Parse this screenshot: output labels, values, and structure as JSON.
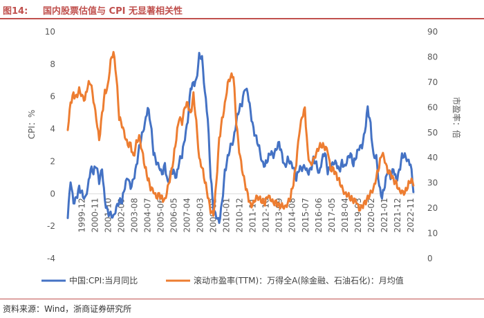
{
  "figure": {
    "number": "图14:",
    "title": "国内股票估值与 CPI 无显著相关性",
    "source": "资料来源：Wind，浙商证券研究所"
  },
  "chart_data": {
    "type": "line",
    "left_axis": {
      "label": "CPI：%",
      "range": [
        -4,
        10
      ],
      "ticks": [
        -4,
        -2,
        0,
        2,
        4,
        6,
        8,
        10
      ]
    },
    "right_axis": {
      "label": "市盈率：倍",
      "range": [
        0,
        90
      ],
      "ticks": [
        0,
        10,
        20,
        30,
        40,
        50,
        60,
        70,
        80,
        90
      ]
    },
    "x_range": [
      1999.0,
      2023.3
    ],
    "x_ticks": [
      "1999-12",
      "2000-11",
      "2001-10",
      "2002-09",
      "2003-08",
      "2004-07",
      "2005-06",
      "2006-05",
      "2007-04",
      "2008-03",
      "2009-02",
      "2010-01",
      "2010-12",
      "2011-11",
      "2012-10",
      "2013-09",
      "2014-08",
      "2015-07",
      "2016-06",
      "2017-05",
      "2018-04",
      "2019-03",
      "2020-02",
      "2021-01",
      "2021-12",
      "2022-11"
    ],
    "series": [
      {
        "name": "中国:CPI:当月同比",
        "axis": "left",
        "color": "#4472c4",
        "x": [
          1999.0,
          1999.2,
          1999.4,
          1999.6,
          1999.8,
          2000.0,
          2000.2,
          2000.4,
          2000.6,
          2000.8,
          2001.0,
          2001.2,
          2001.4,
          2001.6,
          2001.8,
          2002.0,
          2002.2,
          2002.4,
          2002.6,
          2002.8,
          2003.0,
          2003.2,
          2003.4,
          2003.6,
          2003.8,
          2004.0,
          2004.2,
          2004.4,
          2004.6,
          2004.8,
          2005.0,
          2005.2,
          2005.4,
          2005.6,
          2005.8,
          2006.0,
          2006.2,
          2006.4,
          2006.6,
          2006.8,
          2007.0,
          2007.2,
          2007.4,
          2007.6,
          2007.8,
          2008.0,
          2008.2,
          2008.4,
          2008.6,
          2008.8,
          2009.0,
          2009.2,
          2009.4,
          2009.6,
          2009.8,
          2010.0,
          2010.2,
          2010.4,
          2010.6,
          2010.8,
          2011.0,
          2011.2,
          2011.4,
          2011.6,
          2011.8,
          2012.0,
          2012.2,
          2012.4,
          2012.6,
          2012.8,
          2013.0,
          2013.2,
          2013.4,
          2013.6,
          2013.8,
          2014.0,
          2014.2,
          2014.4,
          2014.6,
          2014.8,
          2015.0,
          2015.2,
          2015.4,
          2015.6,
          2015.8,
          2016.0,
          2016.2,
          2016.4,
          2016.6,
          2016.8,
          2017.0,
          2017.2,
          2017.4,
          2017.6,
          2017.8,
          2018.0,
          2018.2,
          2018.4,
          2018.6,
          2018.8,
          2019.0,
          2019.2,
          2019.4,
          2019.6,
          2019.8,
          2020.0,
          2020.2,
          2020.4,
          2020.6,
          2020.8,
          2021.0,
          2021.2,
          2021.4,
          2021.6,
          2021.8,
          2022.0,
          2022.2,
          2022.4,
          2022.6,
          2022.8,
          2023.0,
          2023.2
        ],
        "values": [
          -1.5,
          0.7,
          -0.6,
          -0.2,
          0.5,
          0.2,
          -0.2,
          0.4,
          1.5,
          1.2,
          1.6,
          0.6,
          1.5,
          -0.4,
          -1.0,
          -1.1,
          -1.3,
          -0.8,
          -0.5,
          -0.6,
          0.3,
          0.9,
          0.3,
          0.9,
          1.8,
          3.0,
          3.8,
          4.4,
          5.3,
          4.3,
          2.4,
          1.8,
          1.6,
          1.2,
          1.9,
          0.8,
          1.4,
          1.5,
          1.0,
          1.9,
          2.2,
          3.3,
          4.4,
          6.5,
          6.9,
          7.1,
          8.7,
          8.5,
          6.3,
          4.6,
          1.0,
          -1.2,
          -1.5,
          -1.8,
          -0.5,
          1.5,
          2.4,
          3.1,
          3.3,
          4.4,
          5.1,
          5.4,
          6.4,
          6.2,
          5.1,
          4.1,
          3.6,
          3.0,
          2.0,
          1.7,
          2.0,
          2.4,
          2.2,
          2.7,
          3.2,
          2.5,
          1.8,
          2.3,
          2.0,
          1.6,
          0.8,
          1.4,
          1.4,
          1.6,
          1.3,
          1.6,
          2.3,
          2.0,
          1.3,
          2.1,
          2.5,
          1.2,
          1.5,
          1.8,
          1.9,
          1.5,
          2.1,
          1.8,
          2.3,
          2.5,
          1.7,
          2.2,
          2.7,
          2.8,
          3.8,
          5.4,
          4.4,
          2.5,
          2.4,
          0.5,
          -0.3,
          0.4,
          1.3,
          0.9,
          1.5,
          0.9,
          1.5,
          2.5,
          2.5,
          2.1,
          1.8,
          0.1
        ],
        "note": "Minor oscillation applied between points when drawn"
      },
      {
        "name": "滚动市盈率(TTM)：万得全A(除金融、石油石化)：月均值",
        "axis": "right",
        "color": "#ed7d31",
        "x": [
          1999.0,
          1999.2,
          1999.4,
          1999.6,
          1999.8,
          2000.0,
          2000.2,
          2000.4,
          2000.6,
          2000.8,
          2001.0,
          2001.2,
          2001.4,
          2001.6,
          2001.8,
          2002.0,
          2002.2,
          2002.4,
          2002.6,
          2002.8,
          2003.0,
          2003.2,
          2003.4,
          2003.6,
          2003.8,
          2004.0,
          2004.2,
          2004.4,
          2004.6,
          2004.8,
          2005.0,
          2005.2,
          2005.4,
          2005.6,
          2005.8,
          2006.0,
          2006.2,
          2006.4,
          2006.6,
          2006.8,
          2007.0,
          2007.2,
          2007.4,
          2007.6,
          2007.8,
          2008.0,
          2008.2,
          2008.4,
          2008.6,
          2008.8,
          2009.0,
          2009.2,
          2009.4,
          2009.6,
          2009.8,
          2010.0,
          2010.2,
          2010.4,
          2010.6,
          2010.8,
          2011.0,
          2011.2,
          2011.4,
          2011.6,
          2011.8,
          2012.0,
          2012.2,
          2012.4,
          2012.6,
          2012.8,
          2013.0,
          2013.2,
          2013.4,
          2013.6,
          2013.8,
          2014.0,
          2014.2,
          2014.4,
          2014.6,
          2014.8,
          2015.0,
          2015.2,
          2015.4,
          2015.6,
          2015.8,
          2016.0,
          2016.2,
          2016.4,
          2016.6,
          2016.8,
          2017.0,
          2017.2,
          2017.4,
          2017.6,
          2017.8,
          2018.0,
          2018.2,
          2018.4,
          2018.6,
          2018.8,
          2019.0,
          2019.2,
          2019.4,
          2019.6,
          2019.8,
          2020.0,
          2020.2,
          2020.4,
          2020.6,
          2020.8,
          2021.0,
          2021.2,
          2021.4,
          2021.6,
          2021.8,
          2022.0,
          2022.2,
          2022.4,
          2022.6,
          2022.8,
          2023.0,
          2023.2
        ],
        "values": [
          51,
          62,
          66,
          65,
          68,
          65,
          63,
          68,
          69,
          62,
          55,
          47,
          58,
          67,
          69,
          79,
          82,
          72,
          55,
          52,
          48,
          45,
          46,
          41,
          47,
          49,
          43,
          36,
          31,
          27,
          26,
          24,
          26,
          25,
          24,
          29,
          33,
          39,
          47,
          55,
          53,
          60,
          62,
          58,
          66,
          55,
          40,
          36,
          30,
          24,
          18,
          17,
          30,
          48,
          56,
          62,
          70,
          72,
          72,
          53,
          42,
          35,
          30,
          26,
          22,
          23,
          25,
          24,
          22,
          21,
          24,
          23,
          22,
          23,
          22,
          22,
          21,
          22,
          24,
          29,
          37,
          49,
          56,
          60,
          43,
          38,
          40,
          42,
          44,
          44,
          43,
          42,
          35,
          36,
          34,
          32,
          29,
          26,
          25,
          23,
          22,
          22,
          19,
          21,
          23,
          25,
          27,
          28,
          32,
          36,
          41,
          38,
          34,
          34,
          32,
          31,
          28,
          27,
          26,
          28,
          30,
          29
        ],
        "note": "Minor oscillation applied between points when drawn"
      }
    ],
    "legend_position": "bottom"
  }
}
